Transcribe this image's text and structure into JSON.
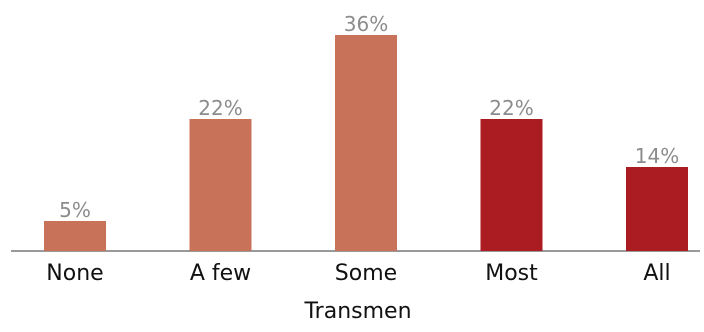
{
  "chart_data": {
    "type": "bar",
    "categories": [
      "None",
      "A few",
      "Some",
      "Most",
      "All"
    ],
    "values": [
      5,
      22,
      36,
      22,
      14
    ],
    "value_labels": [
      "5%",
      "22%",
      "36%",
      "22%",
      "14%"
    ],
    "bar_colors": [
      "#c87259",
      "#c87259",
      "#c87259",
      "#ab1b22",
      "#ab1b22"
    ],
    "title": "",
    "xlabel": "Transmen",
    "ylabel": "",
    "ylim": [
      0,
      38
    ],
    "grid": false,
    "legend": "none"
  },
  "colors": {
    "light_bar": "#c87259",
    "dark_bar": "#ab1b22",
    "value_label": "#8c8c8c",
    "axis": "#333333",
    "text": "#111111"
  }
}
